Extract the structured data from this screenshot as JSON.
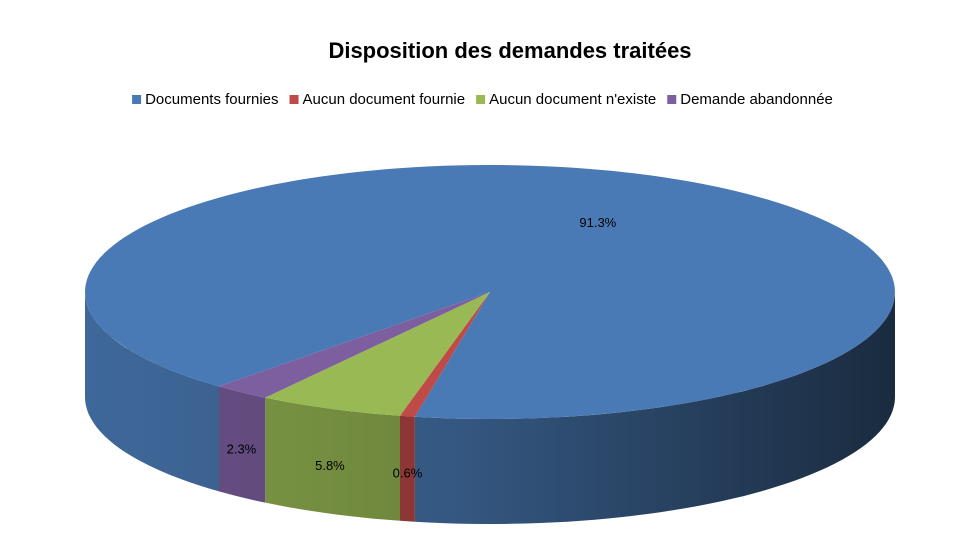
{
  "chart_data": {
    "type": "pie",
    "title": "Disposition des demandes traitées",
    "categories": [
      "Documents fournies",
      "Aucun document fournie",
      "Aucun document n'existe",
      "Demande abandonnée"
    ],
    "values": [
      91.3,
      0.6,
      5.8,
      2.3
    ],
    "value_labels": [
      "91.3%",
      "0.6%",
      "5.8%",
      "2.3%"
    ],
    "colors": [
      "#4a7ab5",
      "#be4b48",
      "#98b954",
      "#7d5fa0"
    ],
    "legend": "top"
  }
}
